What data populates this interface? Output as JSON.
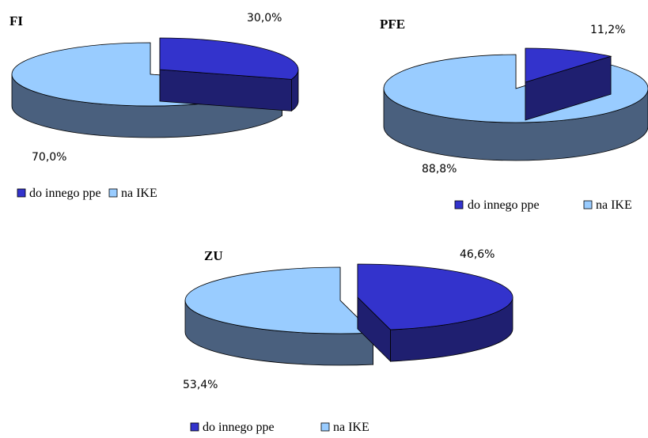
{
  "colors": {
    "do_innego_ppe": {
      "top": "#3333cc",
      "side": "#1f1f70"
    },
    "na_ike": {
      "top": "#99ccff",
      "side": "#4a607e"
    },
    "edge": "#000000"
  },
  "chart_data": [
    {
      "type": "pie",
      "title": "FI",
      "categories": [
        "do innego ppe",
        "na IKE"
      ],
      "values": [
        30.0,
        70.0
      ],
      "labels": [
        "30,0%",
        "70,0%"
      ],
      "exploded": true,
      "three_d": true
    },
    {
      "type": "pie",
      "title": "PFE",
      "categories": [
        "do innego ppe",
        "na IKE"
      ],
      "values": [
        11.2,
        88.8
      ],
      "labels": [
        "11,2%",
        "88,8%"
      ],
      "exploded": true,
      "three_d": true
    },
    {
      "type": "pie",
      "title": "ZU",
      "categories": [
        "do innego ppe",
        "na IKE"
      ],
      "values": [
        46.6,
        53.4
      ],
      "labels": [
        "46,6%",
        "53,4%"
      ],
      "exploded": true,
      "three_d": true
    }
  ]
}
